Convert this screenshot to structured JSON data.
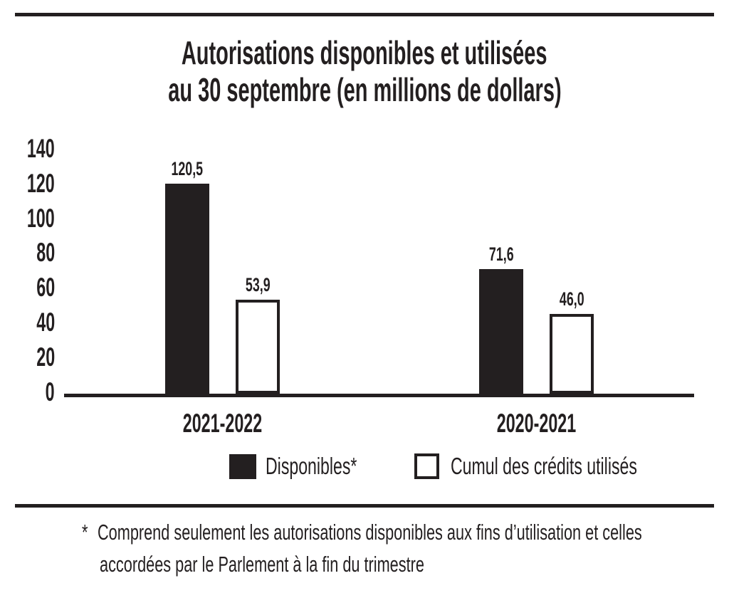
{
  "colors": {
    "ink": "#231f20",
    "paper": "#ffffff"
  },
  "chart_data": {
    "type": "bar",
    "title_lines": [
      "Autorisations disponibles et utilisées",
      "au 30 septembre (en millions de dollars)"
    ],
    "categories": [
      "2021-2022",
      "2020-2021"
    ],
    "series": [
      {
        "name": "Disponibles*",
        "fill": "black",
        "values": [
          120.5,
          71.6
        ],
        "labels": [
          "120,5",
          "71,6"
        ]
      },
      {
        "name": "Cumul des crédits utilisés",
        "fill": "white",
        "values": [
          53.9,
          46.0
        ],
        "labels": [
          "53,9",
          "46,0"
        ]
      }
    ],
    "yticks": [
      0,
      20,
      40,
      60,
      80,
      100,
      120,
      140
    ],
    "ylim": [
      0,
      140
    ],
    "grid": false,
    "legend_position": "bottom",
    "value_decimal_separator": ","
  },
  "footnote": {
    "marker": "*",
    "line1": "Comprend seulement les autorisations disponibles aux fins d’utilisation et celles",
    "line2": "accordées par le Parlement à la fin du trimestre"
  }
}
